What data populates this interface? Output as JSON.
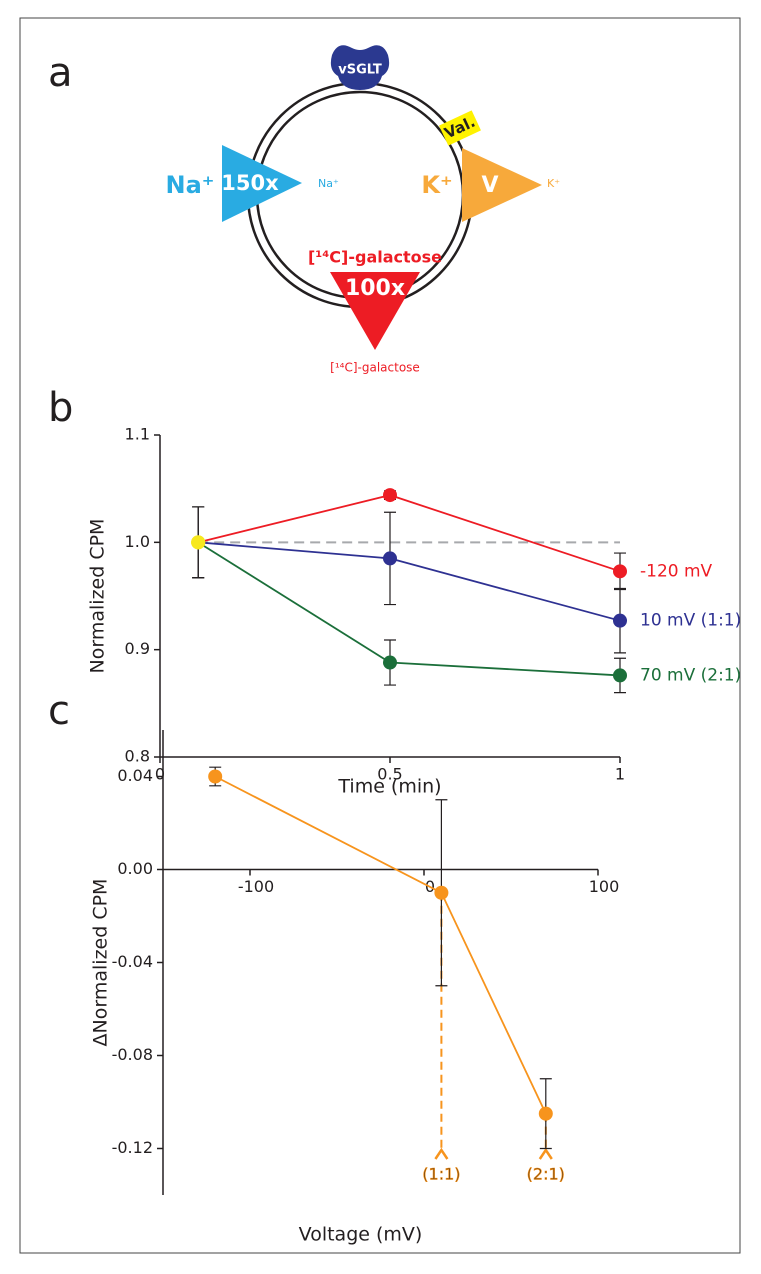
{
  "panels": [
    "a",
    "b",
    "c"
  ],
  "diagram": {
    "transporter": "vSGLT",
    "ionophore": "Val.",
    "sodium_outside": "Na⁺",
    "sodium_gradient": "150x",
    "sodium_inside": "Na⁺",
    "potassium_outside": "K⁺",
    "potential": "V",
    "potassium_inside": "K⁺",
    "substrate_outside": "[¹⁴C]-galactose",
    "substrate_gradient": "100x",
    "substrate_inside": "[¹⁴C]-galactose"
  },
  "chart_data": [
    {
      "type": "line",
      "xlabel": "Time (min)",
      "ylabel": "Normalized CPM",
      "x": [
        0.083,
        0.5,
        1
      ],
      "xlim": [
        0,
        1
      ],
      "xticks": [
        0,
        0.5,
        1
      ],
      "ylim": [
        0.8,
        1.1
      ],
      "yticks": [
        0.8,
        0.9,
        {
          "value": 1,
          "label": "1.0"
        },
        1.1
      ],
      "reference_line": 1,
      "start_color": "#f7e81e",
      "series": [
        {
          "name": "-120 mV",
          "color": "#ed1c24",
          "values": [
            1,
            1.044,
            0.973
          ],
          "errors": [
            0.033,
            0.004,
            0.017
          ]
        },
        {
          "name": "10 mV (1:1)",
          "color": "#2e3192",
          "values": [
            1,
            0.985,
            0.927
          ],
          "errors": [
            0.033,
            0.043,
            0.03
          ]
        },
        {
          "name": "70 mV (2:1)",
          "color": "#1b6f3a",
          "values": [
            1,
            0.888,
            0.876
          ],
          "errors": [
            0.033,
            0.021,
            0.016
          ]
        }
      ]
    },
    {
      "type": "line",
      "xlabel": "Voltage (mV)",
      "ylabel": "ΔNormalized CPM",
      "x": [
        -120,
        10,
        70
      ],
      "xlim": [
        -150,
        100
      ],
      "xticks": [
        -100,
        0,
        100
      ],
      "ylim": [
        -0.14,
        0.06
      ],
      "yticks": [
        0.04,
        {
          "value": 0,
          "label": "0.00"
        },
        -0.04,
        -0.08,
        -0.12
      ],
      "color": "#f7941d",
      "values": [
        0.04,
        -0.01,
        -0.105
      ],
      "errors": [
        0.004,
        0.04,
        0.015
      ],
      "annotations": [
        {
          "x": 10,
          "text": "(1:1)"
        },
        {
          "x": 70,
          "text": "(2:1)"
        }
      ]
    }
  ]
}
